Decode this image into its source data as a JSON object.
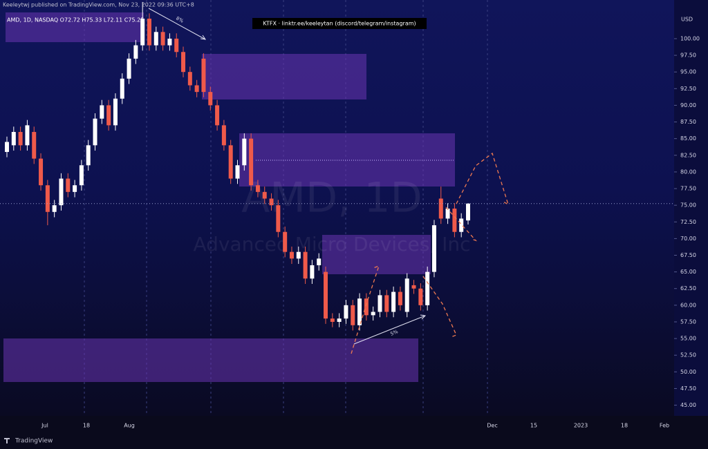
{
  "header": {
    "published": "Keeleytwj published on TradingView.com, Nov 23, 2022 09:36 UTC+8",
    "brand": "TradingView"
  },
  "chart_data": {
    "type": "candlestick",
    "title": "AMD, 1D, NASDAQ O72.72 H75.33 L72.11 C75.25",
    "watermark": "AMD, 1D",
    "watermark_subtitle": "Advanced Micro Devices, Inc",
    "annotation": "KTFX · linktr.ee/keeleytan (discord/telegram/instagram)",
    "arrow_labels": [
      "8%",
      "5%"
    ],
    "currency": "USD",
    "up_color": "#ffffff",
    "down_color": "#ef5a4a",
    "open": [
      83,
      84,
      86,
      84,
      86,
      82,
      78,
      74,
      75,
      79,
      77,
      78,
      81,
      84,
      88,
      90,
      87,
      91,
      94,
      97,
      99,
      103,
      99,
      101,
      99,
      100,
      98,
      95,
      93,
      97,
      92,
      90,
      87,
      84,
      79,
      81,
      85,
      78,
      77,
      76,
      75,
      71,
      68,
      67,
      68,
      64,
      66,
      65,
      58,
      57.5,
      58,
      60,
      57,
      61,
      58.5,
      59,
      61.5,
      59,
      62,
      59,
      63,
      62.5,
      60,
      65,
      76,
      73,
      74.5,
      71,
      72.72
    ],
    "high": [
      85.3,
      86.8,
      86.8,
      87.8,
      86.8,
      82.8,
      78.8,
      75.8,
      79.8,
      79.8,
      78.8,
      81.8,
      84.8,
      88.8,
      90.8,
      90.8,
      91.8,
      94.8,
      97.8,
      99.8,
      105.5,
      103.8,
      101.8,
      101.8,
      100.8,
      100.8,
      98.8,
      95.8,
      93.8,
      97.8,
      92.8,
      90.8,
      87.8,
      84.8,
      81.8,
      85.8,
      85.8,
      78.8,
      77.8,
      76.8,
      75.8,
      71.8,
      68.8,
      68.8,
      68.8,
      66.8,
      67.8,
      65.8,
      58.8,
      58.8,
      60.8,
      60.8,
      61.8,
      61.8,
      59.8,
      62.3,
      62.3,
      62.8,
      62.8,
      64.8,
      63.8,
      63.3,
      65.8,
      72.8,
      77.8,
      75.3,
      75.3,
      73.8,
      75.33
    ],
    "low": [
      82.2,
      83.2,
      83.2,
      83.2,
      81.2,
      77.2,
      72.0,
      73.2,
      74.2,
      76.2,
      76.2,
      77.2,
      80.2,
      83.2,
      87.2,
      86.2,
      86.2,
      90.2,
      93.2,
      96.2,
      98.2,
      98.2,
      98.2,
      98.2,
      98.2,
      97.2,
      94.2,
      92.2,
      91.2,
      91.2,
      89.2,
      86.2,
      83.2,
      78.2,
      78.2,
      80.2,
      77.2,
      76.2,
      75.2,
      74.2,
      70.2,
      67.2,
      66.2,
      66.2,
      63.2,
      63.2,
      65.2,
      57.2,
      56.7,
      56.7,
      57.2,
      56.2,
      56.2,
      57.7,
      57.7,
      58.2,
      58.2,
      58.2,
      59.2,
      58.2,
      61.7,
      59.2,
      59.2,
      64.2,
      72.2,
      72.2,
      70.2,
      70.2,
      72.11
    ],
    "close": [
      84.5,
      86,
      84,
      87,
      82,
      78,
      74,
      75,
      79,
      77,
      78,
      81,
      84,
      88,
      90,
      87,
      91,
      94,
      97,
      99,
      103,
      99,
      101,
      99,
      100,
      98,
      95,
      93,
      92,
      92,
      90,
      87,
      84,
      79,
      81,
      85,
      78,
      77,
      76,
      75,
      71,
      68,
      67,
      68,
      64,
      66,
      67,
      58,
      57.5,
      58,
      60,
      57,
      61,
      58.5,
      59,
      61.5,
      59,
      62,
      60,
      64,
      62.5,
      60,
      65,
      72,
      73,
      74.5,
      71,
      73,
      75.25
    ],
    "xtick_labels": [
      "Jul",
      "18",
      "Aug",
      "Dec",
      "15",
      "2023",
      "18",
      "Feb"
    ],
    "ylim": [
      43.4,
      105.8
    ],
    "yticks": [
      {
        "value": 45,
        "label": "45.00"
      },
      {
        "value": 47.5,
        "label": "47.50"
      },
      {
        "value": 50,
        "label": "50.00"
      },
      {
        "value": 52.5,
        "label": "52.50"
      },
      {
        "value": 55,
        "label": "55.00"
      },
      {
        "value": 57.5,
        "label": "57.50"
      },
      {
        "value": 60,
        "label": "60.00"
      },
      {
        "value": 62.5,
        "label": "62.50"
      },
      {
        "value": 65,
        "label": "65.00"
      },
      {
        "value": 67.5,
        "label": "67.50"
      },
      {
        "value": 70,
        "label": "70.00"
      },
      {
        "value": 72.5,
        "label": "72.50"
      },
      {
        "value": 75,
        "label": "75.00"
      },
      {
        "value": 77.5,
        "label": "77.50"
      },
      {
        "value": 80,
        "label": "80.00"
      },
      {
        "value": 82.5,
        "label": "82.50"
      },
      {
        "value": 85,
        "label": "85.00"
      },
      {
        "value": 87.5,
        "label": "87.50"
      },
      {
        "value": 90,
        "label": "90.00"
      },
      {
        "value": 92.5,
        "label": "92.50"
      },
      {
        "value": 95,
        "label": "95.00"
      },
      {
        "value": 97.5,
        "label": "97.50"
      },
      {
        "value": 100,
        "label": "100.00"
      }
    ]
  }
}
